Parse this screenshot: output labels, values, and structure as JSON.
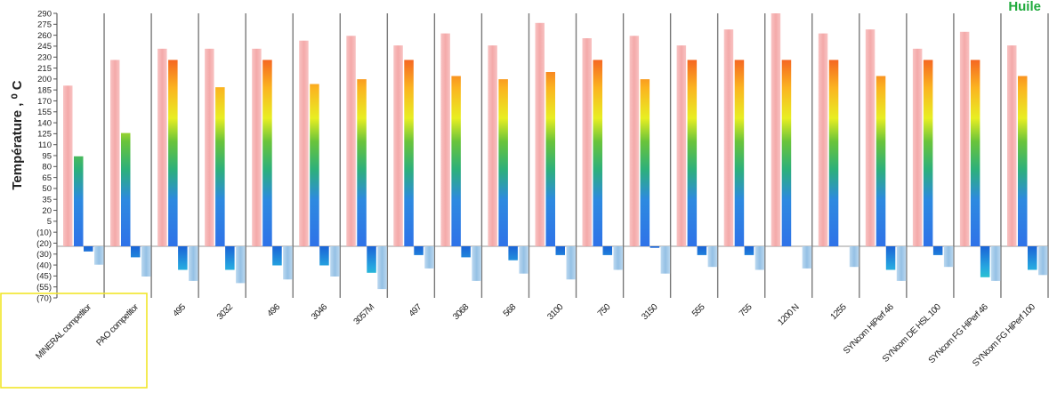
{
  "chart_data": {
    "type": "bar",
    "title": "",
    "corner_text": "Huile",
    "ylabel": "Température , ⁰ C",
    "xlabel": "",
    "ylim": [
      -70,
      290
    ],
    "yticks": [
      -70,
      -55,
      -45,
      -40,
      -30,
      -20,
      -10,
      5,
      20,
      35,
      50,
      65,
      80,
      95,
      110,
      125,
      140,
      155,
      170,
      185,
      200,
      215,
      230,
      245,
      260,
      275,
      290
    ],
    "ytick_labels": [
      "(70)",
      "(55)",
      "(45)",
      "(40)",
      "(30)",
      "(20)",
      "(10)",
      "5",
      "20",
      "35",
      "50",
      "65",
      "80",
      "95",
      "110",
      "125",
      "140",
      "155",
      "170",
      "185",
      "200",
      "215",
      "230",
      "245",
      "260",
      "275",
      "290"
    ],
    "grid_vertical": true,
    "categories": [
      "MINERAL competitor",
      "PAO competitor",
      "495",
      "3032",
      "496",
      "3046",
      "3057M",
      "497",
      "3068",
      "568",
      "3100",
      "750",
      "3150",
      "555",
      "755",
      "1200 N",
      "1255",
      "SYNcom HiPerf 46",
      "SYNcom DE HSL 100",
      "SYNcom FG HiPerf 46",
      "SYNcom FG HiPerf 100"
    ],
    "series": [
      {
        "values": [
          200,
          232,
          246,
          246,
          246,
          256,
          262,
          250,
          265,
          250,
          278,
          259,
          262,
          250,
          270,
          290,
          265,
          270,
          246,
          267,
          250
        ],
        "color": "#f4a0a0"
      },
      {
        "values": [
          112,
          141,
          232,
          198,
          232,
          202,
          208,
          232,
          212,
          208,
          217,
          232,
          208,
          232,
          232,
          232,
          232,
          212,
          232,
          232,
          212
        ],
        "color": "gradient-red-yellow-green-blue"
      },
      {
        "values": [
          -7,
          -15,
          -32,
          -32,
          -26,
          -26,
          -36,
          -12,
          -15,
          -19,
          -12,
          -12,
          -2,
          -12,
          -12,
          0,
          0,
          -32,
          -12,
          -42,
          -32
        ],
        "color": "gradient-blue-cyan"
      },
      {
        "values": [
          -25,
          -41,
          -47,
          -50,
          -45,
          -41,
          -58,
          -30,
          -47,
          -37,
          -45,
          -32,
          -37,
          -28,
          -32,
          -30,
          -28,
          -47,
          -28,
          -47,
          -39
        ],
        "color": "#9cc5e6"
      }
    ]
  },
  "annotation": {
    "highlight_box_color": "#f2e62a"
  }
}
